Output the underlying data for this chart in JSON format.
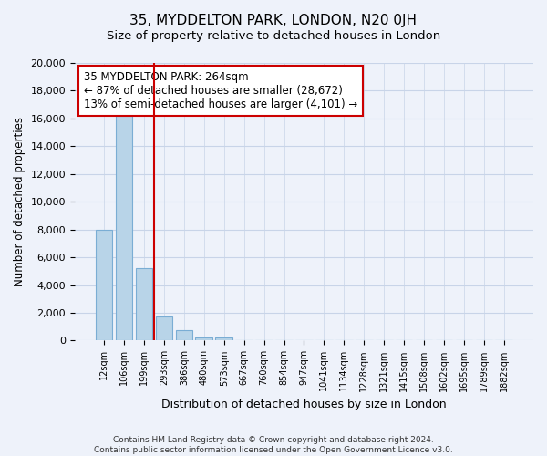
{
  "title": "35, MYDDELTON PARK, LONDON, N20 0JH",
  "subtitle": "Size of property relative to detached houses in London",
  "xlabel": "Distribution of detached houses by size in London",
  "ylabel": "Number of detached properties",
  "bar_labels": [
    "12sqm",
    "106sqm",
    "199sqm",
    "293sqm",
    "386sqm",
    "480sqm",
    "573sqm",
    "667sqm",
    "760sqm",
    "854sqm",
    "947sqm",
    "1041sqm",
    "1134sqm",
    "1228sqm",
    "1321sqm",
    "1415sqm",
    "1508sqm",
    "1602sqm",
    "1695sqm",
    "1789sqm",
    "1882sqm"
  ],
  "bar_values": [
    8000,
    16500,
    5200,
    1750,
    750,
    250,
    200,
    0,
    0,
    0,
    0,
    0,
    0,
    0,
    0,
    0,
    0,
    0,
    0,
    0,
    0
  ],
  "bar_color": "#b8d4e8",
  "bar_edge_color": "#7aadd4",
  "vline_x": 2.5,
  "vline_color": "#cc0000",
  "annotation_title": "35 MYDDELTON PARK: 264sqm",
  "annotation_line1": "← 87% of detached houses are smaller (28,672)",
  "annotation_line2": "13% of semi-detached houses are larger (4,101) →",
  "annotation_box_color": "#ffffff",
  "annotation_box_edge": "#cc0000",
  "ylim": [
    0,
    20000
  ],
  "yticks": [
    0,
    2000,
    4000,
    6000,
    8000,
    10000,
    12000,
    14000,
    16000,
    18000,
    20000
  ],
  "footer_line1": "Contains HM Land Registry data © Crown copyright and database right 2024.",
  "footer_line2": "Contains public sector information licensed under the Open Government Licence v3.0.",
  "bg_color": "#eef2fa",
  "grid_color": "#c8d4e8"
}
